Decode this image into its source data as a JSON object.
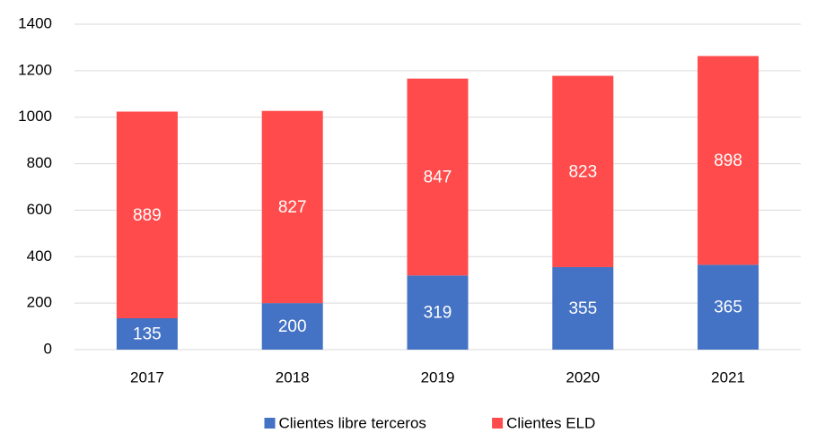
{
  "chart_data": {
    "type": "stacked_bar",
    "categories": [
      "2017",
      "2018",
      "2019",
      "2020",
      "2021"
    ],
    "series": [
      {
        "name": "Clientes libre terceros",
        "color": "#4472c4",
        "values": [
          135,
          200,
          319,
          355,
          365
        ]
      },
      {
        "name": "Clientes ELD",
        "color": "#ff4b4b",
        "values": [
          889,
          827,
          847,
          823,
          898
        ]
      }
    ],
    "ylim": [
      0,
      1400
    ],
    "yticks": [
      0,
      200,
      400,
      600,
      800,
      1000,
      1200,
      1400
    ],
    "grid": true,
    "legend": "bottom"
  }
}
